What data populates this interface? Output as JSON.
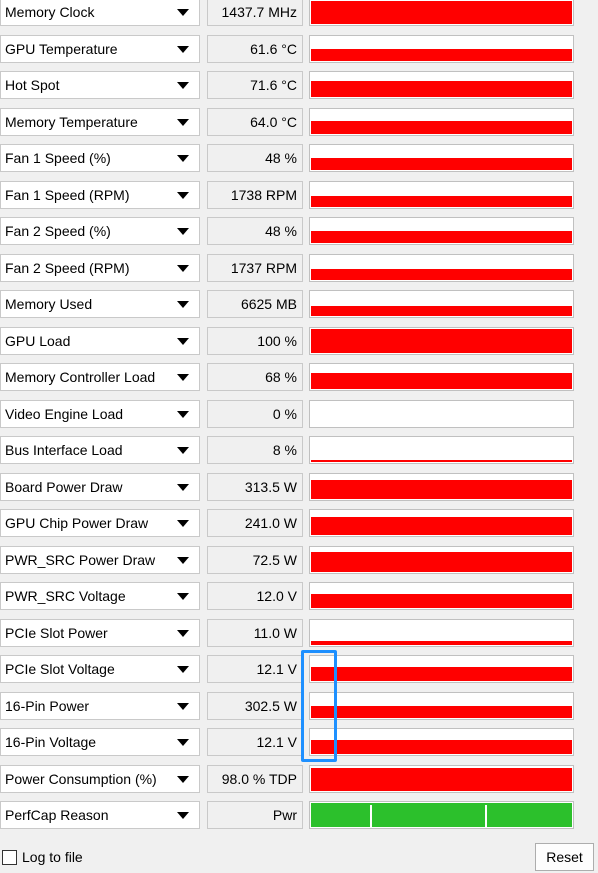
{
  "sensors": [
    {
      "name": "Memory Clock",
      "value": "1437.7 MHz",
      "level": 0.95,
      "color": "#ff0000"
    },
    {
      "name": "GPU Temperature",
      "value": "61.6 °C",
      "level": 0.5,
      "color": "#ff0000"
    },
    {
      "name": "Hot Spot",
      "value": "71.6 °C",
      "level": 0.65,
      "color": "#ff0000"
    },
    {
      "name": "Memory Temperature",
      "value": "64.0 °C",
      "level": 0.55,
      "color": "#ff0000"
    },
    {
      "name": "Fan 1 Speed (%)",
      "value": "48 %",
      "level": 0.48,
      "color": "#ff0000"
    },
    {
      "name": "Fan 1 Speed (RPM)",
      "value": "1738 RPM",
      "level": 0.45,
      "color": "#ff0000"
    },
    {
      "name": "Fan 2 Speed (%)",
      "value": "48 %",
      "level": 0.48,
      "color": "#ff0000"
    },
    {
      "name": "Fan 2 Speed (RPM)",
      "value": "1737 RPM",
      "level": 0.45,
      "color": "#ff0000"
    },
    {
      "name": "Memory Used",
      "value": "6625 MB",
      "level": 0.4,
      "color": "#ff0000"
    },
    {
      "name": "GPU Load",
      "value": "100 %",
      "level": 1.0,
      "color": "#ff0000"
    },
    {
      "name": "Memory Controller Load",
      "value": "68 %",
      "level": 0.68,
      "color": "#ff0000"
    },
    {
      "name": "Video Engine Load",
      "value": "0 %",
      "level": 0.0,
      "color": "#ff0000"
    },
    {
      "name": "Bus Interface Load",
      "value": "8 %",
      "level": 0.08,
      "color": "#ff0000"
    },
    {
      "name": "Board Power Draw",
      "value": "313.5 W",
      "level": 0.8,
      "color": "#ff0000"
    },
    {
      "name": "GPU Chip Power Draw",
      "value": "241.0 W",
      "level": 0.75,
      "color": "#ff0000"
    },
    {
      "name": "PWR_SRC Power Draw",
      "value": "72.5 W",
      "level": 0.85,
      "color": "#ff0000"
    },
    {
      "name": "PWR_SRC Voltage",
      "value": "12.0 V",
      "level": 0.6,
      "color": "#ff0000"
    },
    {
      "name": "PCIe Slot Power",
      "value": "11.0 W",
      "level": 0.15,
      "color": "#ff0000"
    },
    {
      "name": "PCIe Slot Voltage",
      "value": "12.1 V",
      "level": 0.6,
      "color": "#ff0000"
    },
    {
      "name": "16-Pin Power",
      "value": "302.5 W",
      "level": 0.5,
      "color": "#ff0000"
    },
    {
      "name": "16-Pin Voltage",
      "value": "12.1 V",
      "level": 0.6,
      "color": "#ff0000"
    },
    {
      "name": "Power Consumption (%)",
      "value": "98.0 % TDP",
      "level": 0.95,
      "color": "#ff0000"
    },
    {
      "name": "PerfCap Reason",
      "value": "Pwr",
      "level": 1.0,
      "color": "#2cc02c"
    }
  ],
  "footer": {
    "log_label": "Log to file",
    "log_checked": false,
    "reset_label": "Reset"
  },
  "icons": {
    "dropdown": "chevron-down-icon"
  }
}
